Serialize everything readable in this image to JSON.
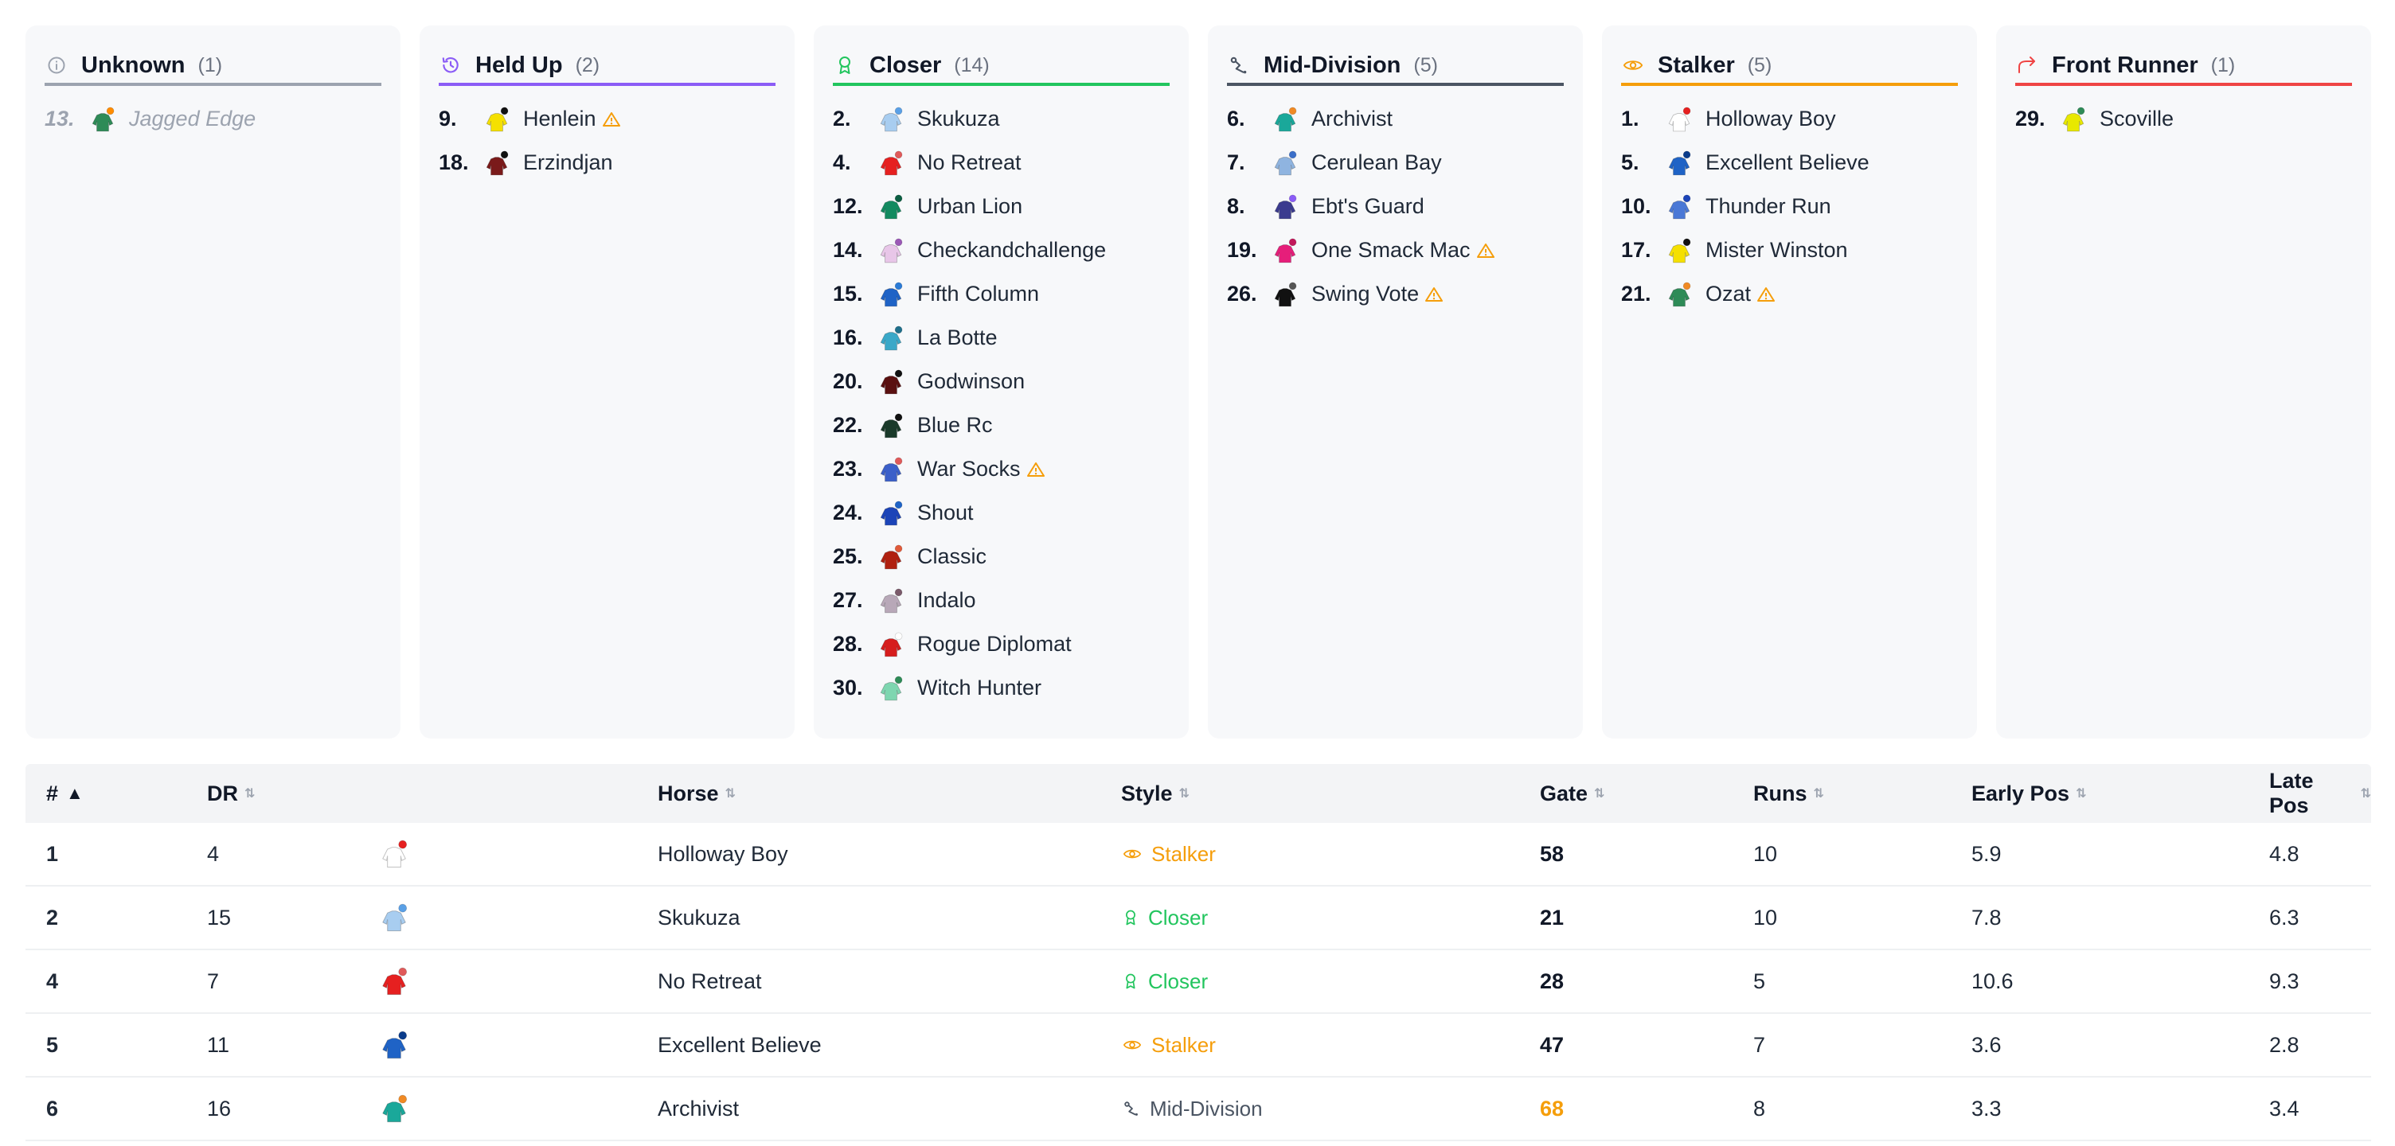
{
  "colors": {
    "unknown": "#9ca3af",
    "held_up": "#8b5cf6",
    "closer": "#22c55e",
    "mid_division": "#4b5563",
    "stalker": "#f59e0b",
    "front_runner": "#ef4444",
    "warning": "#f59e0b"
  },
  "columns": [
    {
      "key": "unknown",
      "title": "Unknown",
      "count": "(1)",
      "icon": "info-icon",
      "entries": [
        {
          "num": "13.",
          "name": "Jagged Edge",
          "warn": false,
          "silk": [
            "#2e8b57",
            "#ff8c00"
          ]
        }
      ]
    },
    {
      "key": "held_up",
      "title": "Held Up",
      "count": "(2)",
      "icon": "clock-icon",
      "entries": [
        {
          "num": "9.",
          "name": "Henlein",
          "warn": true,
          "silk": [
            "#f5e000",
            "#111111"
          ]
        },
        {
          "num": "18.",
          "name": "Erzindjan",
          "warn": false,
          "silk": [
            "#7a1a1a",
            "#111111"
          ]
        }
      ]
    },
    {
      "key": "closer",
      "title": "Closer",
      "count": "(14)",
      "icon": "award-icon",
      "entries": [
        {
          "num": "2.",
          "name": "Skukuza",
          "warn": false,
          "silk": [
            "#a8cdf0",
            "#5aa0e6"
          ]
        },
        {
          "num": "4.",
          "name": "No Retreat",
          "warn": false,
          "silk": [
            "#e62020",
            "#e05a5a"
          ]
        },
        {
          "num": "12.",
          "name": "Urban Lion",
          "warn": false,
          "silk": [
            "#138a60",
            "#0b5e42"
          ]
        },
        {
          "num": "14.",
          "name": "Checkandchallenge",
          "warn": false,
          "silk": [
            "#e8c6e8",
            "#9b59b6"
          ]
        },
        {
          "num": "15.",
          "name": "Fifth Column",
          "warn": false,
          "silk": [
            "#1f63c6",
            "#2b7bd6"
          ]
        },
        {
          "num": "16.",
          "name": "La Botte",
          "warn": false,
          "silk": [
            "#3aa8c8",
            "#1f6f8b"
          ]
        },
        {
          "num": "20.",
          "name": "Godwinson",
          "warn": false,
          "silk": [
            "#5a1010",
            "#111111"
          ]
        },
        {
          "num": "22.",
          "name": "Blue Rc",
          "warn": false,
          "silk": [
            "#1a3a2a",
            "#111111"
          ]
        },
        {
          "num": "23.",
          "name": "War Socks",
          "warn": true,
          "silk": [
            "#3b5fc9",
            "#e05a5a"
          ]
        },
        {
          "num": "24.",
          "name": "Shout",
          "warn": false,
          "silk": [
            "#1c44b8",
            "#1f63c6"
          ]
        },
        {
          "num": "25.",
          "name": "Classic",
          "warn": false,
          "silk": [
            "#b02010",
            "#e05a3a"
          ]
        },
        {
          "num": "27.",
          "name": "Indalo",
          "warn": false,
          "silk": [
            "#b8a8b8",
            "#7a5a6a"
          ]
        },
        {
          "num": "28.",
          "name": "Rogue Diplomat",
          "warn": false,
          "silk": [
            "#d61d1d",
            "#ffffff"
          ]
        },
        {
          "num": "30.",
          "name": "Witch Hunter",
          "warn": false,
          "silk": [
            "#7ed6b0",
            "#2e8b57"
          ]
        }
      ]
    },
    {
      "key": "mid_division",
      "title": "Mid-Division",
      "count": "(5)",
      "icon": "route-icon",
      "entries": [
        {
          "num": "6.",
          "name": "Archivist",
          "warn": false,
          "silk": [
            "#1aa89a",
            "#f08a24"
          ]
        },
        {
          "num": "7.",
          "name": "Cerulean Bay",
          "warn": false,
          "silk": [
            "#8fb4e0",
            "#3b6fc9"
          ]
        },
        {
          "num": "8.",
          "name": "Ebt's Guard",
          "warn": false,
          "silk": [
            "#3b3b8f",
            "#8b5cf6"
          ]
        },
        {
          "num": "19.",
          "name": "One Smack Mac",
          "warn": true,
          "silk": [
            "#e61e7a",
            "#c2185b"
          ]
        },
        {
          "num": "26.",
          "name": "Swing Vote",
          "warn": true,
          "silk": [
            "#111111",
            "#555555"
          ]
        }
      ]
    },
    {
      "key": "stalker",
      "title": "Stalker",
      "count": "(5)",
      "icon": "eye-icon",
      "entries": [
        {
          "num": "1.",
          "name": "Holloway Boy",
          "warn": false,
          "silk": [
            "#ffffff",
            "#e62020"
          ]
        },
        {
          "num": "5.",
          "name": "Excellent Believe",
          "warn": false,
          "silk": [
            "#1f63c6",
            "#0b3c8b"
          ]
        },
        {
          "num": "10.",
          "name": "Thunder Run",
          "warn": false,
          "silk": [
            "#4a78d6",
            "#1c44b8"
          ]
        },
        {
          "num": "17.",
          "name": "Mister Winston",
          "warn": false,
          "silk": [
            "#f5e000",
            "#111111"
          ]
        },
        {
          "num": "21.",
          "name": "Ozat",
          "warn": true,
          "silk": [
            "#2e8b57",
            "#f08a24"
          ]
        }
      ]
    },
    {
      "key": "front_runner",
      "title": "Front Runner",
      "count": "(1)",
      "icon": "trend-up-icon",
      "entries": [
        {
          "num": "29.",
          "name": "Scoville",
          "warn": false,
          "silk": [
            "#e8e800",
            "#2e8b57"
          ]
        }
      ]
    }
  ],
  "table": {
    "headers": [
      "#",
      "DR",
      "",
      "Horse",
      "Style",
      "Gate",
      "Runs",
      "Early Pos",
      "Late Pos"
    ],
    "sort_asc_icon": "▲",
    "sort_icon": "⇅",
    "rows": [
      {
        "num": "1",
        "dr": "4",
        "horse": "Holloway Boy",
        "style": "Stalker",
        "style_key": "stalker",
        "gate": "58",
        "gate_color": "#111827",
        "runs": "10",
        "early": "5.9",
        "late": "4.8",
        "silk": [
          "#ffffff",
          "#e62020"
        ]
      },
      {
        "num": "2",
        "dr": "15",
        "horse": "Skukuza",
        "style": "Closer",
        "style_key": "closer",
        "gate": "21",
        "gate_color": "#111827",
        "runs": "10",
        "early": "7.8",
        "late": "6.3",
        "silk": [
          "#a8cdf0",
          "#5aa0e6"
        ]
      },
      {
        "num": "4",
        "dr": "7",
        "horse": "No Retreat",
        "style": "Closer",
        "style_key": "closer",
        "gate": "28",
        "gate_color": "#111827",
        "runs": "5",
        "early": "10.6",
        "late": "9.3",
        "silk": [
          "#e62020",
          "#e05a5a"
        ]
      },
      {
        "num": "5",
        "dr": "11",
        "horse": "Excellent Believe",
        "style": "Stalker",
        "style_key": "stalker",
        "gate": "47",
        "gate_color": "#111827",
        "runs": "7",
        "early": "3.6",
        "late": "2.8",
        "silk": [
          "#1f63c6",
          "#0b3c8b"
        ]
      },
      {
        "num": "6",
        "dr": "16",
        "horse": "Archivist",
        "style": "Mid-Division",
        "style_key": "mid_division",
        "gate": "68",
        "gate_color": "#f59e0b",
        "runs": "8",
        "early": "3.3",
        "late": "3.4",
        "silk": [
          "#1aa89a",
          "#f08a24"
        ]
      }
    ]
  }
}
